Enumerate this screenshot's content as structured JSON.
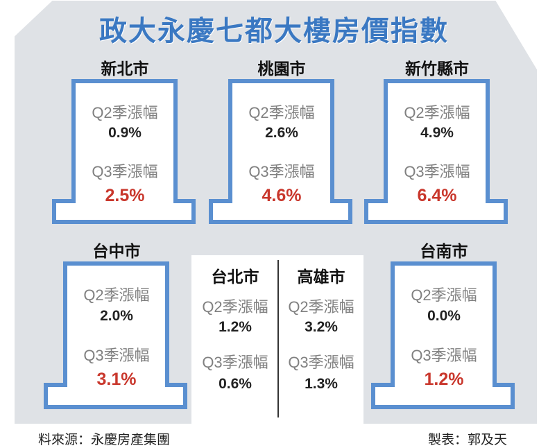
{
  "title": "政大永慶七都大樓房價指數",
  "colors": {
    "title": "#3a78c2",
    "house_fill": "#dfe2e6",
    "box_border": "#5a8fd0",
    "highlight": "#c9372c"
  },
  "cities": [
    {
      "name": "新北市",
      "q2_label": "Q2季漲幅",
      "q2_value": "0.9%",
      "q3_label": "Q3季漲幅",
      "q3_value": "2.5%"
    },
    {
      "name": "桃園市",
      "q2_label": "Q2季漲幅",
      "q2_value": "2.6%",
      "q3_label": "Q3季漲幅",
      "q3_value": "4.6%"
    },
    {
      "name": "新竹縣市",
      "q2_label": "Q2季漲幅",
      "q2_value": "4.9%",
      "q3_label": "Q3季漲幅",
      "q3_value": "6.4%"
    },
    {
      "name": "台中市",
      "q2_label": "Q2季漲幅",
      "q2_value": "2.0%",
      "q3_label": "Q3季漲幅",
      "q3_value": "3.1%"
    },
    {
      "name": "台南市",
      "q2_label": "Q2季漲幅",
      "q2_value": "0.0%",
      "q3_label": "Q3季漲幅",
      "q3_value": "1.2%"
    },
    {
      "name": "台北市",
      "q2_label": "Q2季漲幅",
      "q2_value": "1.2%",
      "q3_label": "Q3季漲幅",
      "q3_value": "0.6%"
    },
    {
      "name": "高雄市",
      "q2_label": "Q2季漲幅",
      "q2_value": "3.2%",
      "q3_label": "Q3季漲幅",
      "q3_value": "1.3%"
    }
  ],
  "footer": {
    "source": "料來源：永慶房產集團",
    "credit": "製表：郭及天"
  }
}
